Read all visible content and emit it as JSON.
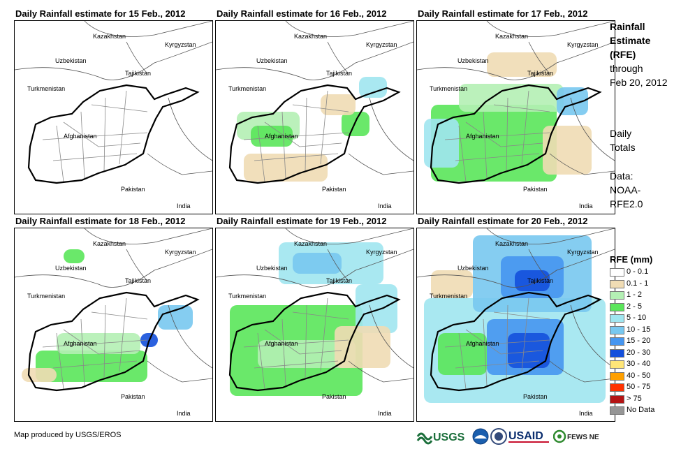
{
  "panels": [
    {
      "title": "Daily Rainfall estimate for 15 Feb., 2012",
      "date": "15 Feb., 2012",
      "rain_level": 0
    },
    {
      "title": "Daily Rainfall estimate for 16 Feb., 2012",
      "date": "16 Feb., 2012",
      "rain_level": 1
    },
    {
      "title": "Daily Rainfall estimate for 17 Feb., 2012",
      "date": "17 Feb., 2012",
      "rain_level": 2
    },
    {
      "title": "Daily Rainfall estimate for 18 Feb., 2012",
      "date": "18 Feb., 2012",
      "rain_level": 1
    },
    {
      "title": "Daily Rainfall estimate for 19 Feb., 2012",
      "date": "19 Feb., 2012",
      "rain_level": 2
    },
    {
      "title": "Daily Rainfall estimate for 20 Feb., 2012",
      "date": "20 Feb., 2012",
      "rain_level": 3
    }
  ],
  "map_labels": {
    "kazakhstan": "Kazakhstan",
    "kyrgyzstan": "Kyrgyzstan",
    "uzbekistan": "Uzbekistan",
    "tajikistan": "Tajikistan",
    "turkmenistan": "Turkmenistan",
    "afghanistan": "Afghanistan",
    "pakistan": "Pakistan",
    "india": "India"
  },
  "sidebar": {
    "title_line1": "Rainfall",
    "title_line2": "Estimate",
    "title_line3": "(RFE)",
    "through_line1": "through",
    "through_line2": "Feb 20, 2012",
    "totals_line1": "Daily",
    "totals_line2": "Totals",
    "data_line1": "Data:",
    "data_line2": "NOAA-",
    "data_line3": "RFE2.0"
  },
  "legend": {
    "title": "RFE (mm)",
    "items": [
      {
        "label": "0 - 0.1",
        "color": "#ffffff"
      },
      {
        "label": "0.1 - 1",
        "color": "#f0dcb4"
      },
      {
        "label": "1 - 2",
        "color": "#b4f0b4"
      },
      {
        "label": "2 - 5",
        "color": "#5ae65a"
      },
      {
        "label": "5 - 10",
        "color": "#a0e6f0"
      },
      {
        "label": "10 - 15",
        "color": "#78c8f0"
      },
      {
        "label": "15 - 20",
        "color": "#4696f0"
      },
      {
        "label": "20 - 30",
        "color": "#1450dc"
      },
      {
        "label": "30 - 40",
        "color": "#ffe678"
      },
      {
        "label": "40 - 50",
        "color": "#ffa000"
      },
      {
        "label": "50 - 75",
        "color": "#ff3200"
      },
      {
        "label": "> 75",
        "color": "#b41414"
      },
      {
        "label": "No Data",
        "color": "#969696"
      }
    ]
  },
  "credit": "Map produced by USGS/EROS",
  "logos": {
    "usgs": "USGS",
    "usaid": "USAID",
    "fewsnet": "FEWS NET"
  }
}
